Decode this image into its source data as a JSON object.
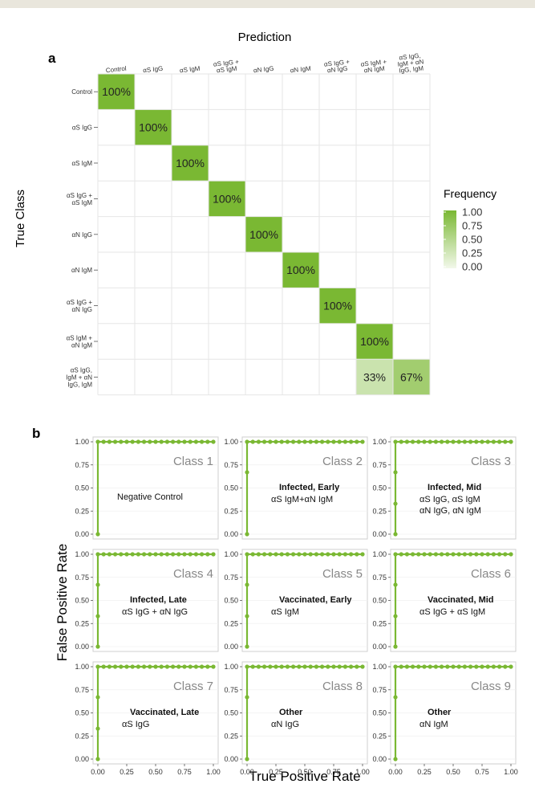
{
  "panel_labels": {
    "a": "a",
    "b": "b"
  },
  "chart_data": [
    {
      "type": "heatmap",
      "title": "Prediction",
      "xlabel": "Prediction",
      "ylabel": "True Class",
      "x_categories": [
        "Control",
        "αS IgG",
        "αS IgM",
        "αS IgG +\nαS IgM",
        "αN IgG",
        "αN IgM",
        "αS IgG +\nαN IgG",
        "αS IgM +\nαN IgM",
        "αS IgG,\nIgM + αN\nIgG, IgM"
      ],
      "y_categories": [
        "Control",
        "αS IgG",
        "αS IgM",
        "αS IgG +\nαS IgM",
        "αN IgG",
        "αN IgM",
        "αS IgG +\nαN IgG",
        "αS IgM +\nαN IgM",
        "αS IgG,\nIgM + αN\nIgG, IgM"
      ],
      "cells": [
        {
          "row": 0,
          "col": 0,
          "value": 1.0,
          "label": "100%"
        },
        {
          "row": 1,
          "col": 1,
          "value": 1.0,
          "label": "100%"
        },
        {
          "row": 2,
          "col": 2,
          "value": 1.0,
          "label": "100%"
        },
        {
          "row": 3,
          "col": 3,
          "value": 1.0,
          "label": "100%"
        },
        {
          "row": 4,
          "col": 4,
          "value": 1.0,
          "label": "100%"
        },
        {
          "row": 5,
          "col": 5,
          "value": 1.0,
          "label": "100%"
        },
        {
          "row": 6,
          "col": 6,
          "value": 1.0,
          "label": "100%"
        },
        {
          "row": 7,
          "col": 7,
          "value": 1.0,
          "label": "100%"
        },
        {
          "row": 8,
          "col": 7,
          "value": 0.33,
          "label": "33%"
        },
        {
          "row": 8,
          "col": 8,
          "value": 0.67,
          "label": "67%"
        }
      ],
      "legend": {
        "title": "Frequency",
        "ticks": [
          "1.00",
          "0.75",
          "0.50",
          "0.25",
          "0.00"
        ],
        "placement": "right"
      },
      "colors": {
        "high": "#7ab833",
        "low": "#f2f8ea",
        "grid": "#e6e6e6"
      }
    },
    {
      "type": "line",
      "xlabel": "True Positive Rate",
      "ylabel": "False Positive Rate",
      "xlim": [
        0,
        1
      ],
      "ylim": [
        0,
        1
      ],
      "x_ticks": [
        "0.00",
        "0.25",
        "0.50",
        "0.75",
        "1.00"
      ],
      "y_ticks": [
        "0.00",
        "0.25",
        "0.50",
        "0.75",
        "1.00"
      ],
      "color": "#7ab833",
      "panels": [
        {
          "class_label": "Class 1",
          "bold_text": "",
          "text": "Negative Control",
          "x": [
            0,
            0,
            0.05,
            0.1,
            0.15,
            0.2,
            0.25,
            0.3,
            0.35,
            0.4,
            0.45,
            0.5,
            0.55,
            0.6,
            0.65,
            0.7,
            0.75,
            0.8,
            0.85,
            0.9,
            0.95,
            1.0
          ],
          "y": [
            0,
            1,
            1,
            1,
            1,
            1,
            1,
            1,
            1,
            1,
            1,
            1,
            1,
            1,
            1,
            1,
            1,
            1,
            1,
            1,
            1,
            1
          ]
        },
        {
          "class_label": "Class 2",
          "bold_text": "Infected, Early",
          "text": "αS IgM+αN IgM",
          "x": [
            0,
            0,
            0,
            0.05,
            0.1,
            0.15,
            0.2,
            0.25,
            0.3,
            0.35,
            0.4,
            0.45,
            0.5,
            0.55,
            0.6,
            0.65,
            0.7,
            0.75,
            0.8,
            0.85,
            0.9,
            0.95,
            1.0
          ],
          "y": [
            0,
            0.67,
            1,
            1,
            1,
            1,
            1,
            1,
            1,
            1,
            1,
            1,
            1,
            1,
            1,
            1,
            1,
            1,
            1,
            1,
            1,
            1,
            1
          ]
        },
        {
          "class_label": "Class 3",
          "bold_text": "Infected, Mid",
          "text": "αS IgG, αS IgM\nαN IgG, αN IgM",
          "x": [
            0,
            0,
            0,
            0,
            0.05,
            0.1,
            0.15,
            0.2,
            0.25,
            0.3,
            0.35,
            0.4,
            0.45,
            0.5,
            0.55,
            0.6,
            0.65,
            0.7,
            0.75,
            0.8,
            0.85,
            0.9,
            0.95,
            1.0
          ],
          "y": [
            0,
            0.33,
            0.67,
            1,
            1,
            1,
            1,
            1,
            1,
            1,
            1,
            1,
            1,
            1,
            1,
            1,
            1,
            1,
            1,
            1,
            1,
            1,
            1,
            1
          ]
        },
        {
          "class_label": "Class 4",
          "bold_text": "Infected, Late",
          "text": "αS IgG + αN IgG",
          "x": [
            0,
            0,
            0,
            0,
            0.05,
            0.1,
            0.15,
            0.2,
            0.25,
            0.3,
            0.35,
            0.4,
            0.45,
            0.5,
            0.55,
            0.6,
            0.65,
            0.7,
            0.75,
            0.8,
            0.85,
            0.9,
            0.95,
            1.0
          ],
          "y": [
            0,
            0.33,
            0.67,
            1,
            1,
            1,
            1,
            1,
            1,
            1,
            1,
            1,
            1,
            1,
            1,
            1,
            1,
            1,
            1,
            1,
            1,
            1,
            1,
            1
          ]
        },
        {
          "class_label": "Class 5",
          "bold_text": "Vaccinated, Early",
          "text": "αS IgM",
          "x": [
            0,
            0,
            0,
            0,
            0.05,
            0.1,
            0.15,
            0.2,
            0.25,
            0.3,
            0.35,
            0.4,
            0.45,
            0.5,
            0.55,
            0.6,
            0.65,
            0.7,
            0.75,
            0.8,
            0.85,
            0.9,
            0.95,
            1.0
          ],
          "y": [
            0,
            0.33,
            0.67,
            1,
            1,
            1,
            1,
            1,
            1,
            1,
            1,
            1,
            1,
            1,
            1,
            1,
            1,
            1,
            1,
            1,
            1,
            1,
            1,
            1
          ]
        },
        {
          "class_label": "Class 6",
          "bold_text": "Vaccinated, Mid",
          "text": "αS IgG + αS IgM",
          "x": [
            0,
            0,
            0,
            0,
            0.05,
            0.1,
            0.15,
            0.2,
            0.25,
            0.3,
            0.35,
            0.4,
            0.45,
            0.5,
            0.55,
            0.6,
            0.65,
            0.7,
            0.75,
            0.8,
            0.85,
            0.9,
            0.95,
            1.0
          ],
          "y": [
            0,
            0.33,
            0.67,
            1,
            1,
            1,
            1,
            1,
            1,
            1,
            1,
            1,
            1,
            1,
            1,
            1,
            1,
            1,
            1,
            1,
            1,
            1,
            1,
            1
          ]
        },
        {
          "class_label": "Class 7",
          "bold_text": "Vaccinated, Late",
          "text": "αS IgG",
          "x": [
            0,
            0,
            0,
            0,
            0.05,
            0.1,
            0.15,
            0.2,
            0.25,
            0.3,
            0.35,
            0.4,
            0.45,
            0.5,
            0.55,
            0.6,
            0.65,
            0.7,
            0.75,
            0.8,
            0.85,
            0.9,
            0.95,
            1.0
          ],
          "y": [
            0,
            0.33,
            0.67,
            1,
            1,
            1,
            1,
            1,
            1,
            1,
            1,
            1,
            1,
            1,
            1,
            1,
            1,
            1,
            1,
            1,
            1,
            1,
            1,
            1
          ]
        },
        {
          "class_label": "Class 8",
          "bold_text": "Other",
          "text": "αN IgG",
          "x": [
            0,
            0,
            0,
            0.05,
            0.1,
            0.15,
            0.2,
            0.25,
            0.3,
            0.35,
            0.4,
            0.45,
            0.5,
            0.55,
            0.6,
            0.65,
            0.7,
            0.75,
            0.8,
            0.85,
            0.9,
            0.95,
            1.0
          ],
          "y": [
            0,
            0.67,
            1,
            1,
            1,
            1,
            1,
            1,
            1,
            1,
            1,
            1,
            1,
            1,
            1,
            1,
            1,
            1,
            1,
            1,
            1,
            1,
            1
          ]
        },
        {
          "class_label": "Class 9",
          "bold_text": "Other",
          "text": "αN IgM",
          "x": [
            0,
            0,
            0,
            0.05,
            0.1,
            0.15,
            0.2,
            0.25,
            0.3,
            0.35,
            0.4,
            0.45,
            0.5,
            0.55,
            0.6,
            0.65,
            0.7,
            0.75,
            0.8,
            0.85,
            0.9,
            0.95,
            1.0
          ],
          "y": [
            0,
            0.67,
            1,
            1,
            1,
            1,
            1,
            1,
            1,
            1,
            1,
            1,
            1,
            1,
            1,
            1,
            1,
            1,
            1,
            1,
            1,
            1,
            1
          ]
        }
      ]
    }
  ]
}
